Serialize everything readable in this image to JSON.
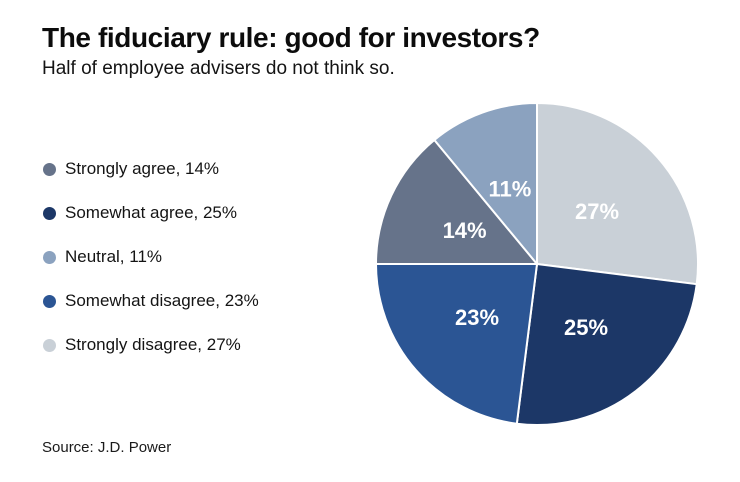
{
  "page": {
    "title": "The fiduciary rule: good for investors?",
    "subtitle": "Half of employee advisers do not think so.",
    "source": "Source: J.D. Power"
  },
  "chart_data": {
    "type": "pie",
    "title": "The fiduciary rule: good for investors?",
    "subtitle": "Half of employee advisers do not think so.",
    "source": "Source: J.D. Power",
    "unit": "%",
    "legend_position": "left",
    "legend_separator": ", ",
    "percent_suffix": "%",
    "data_label_color": "#ffffff",
    "slices": [
      {
        "label": "Strongly agree",
        "value": 14,
        "color": "#66738a"
      },
      {
        "label": "Somewhat agree",
        "value": 25,
        "color": "#1c3767"
      },
      {
        "label": "Neutral",
        "value": 11,
        "color": "#8ba2bf"
      },
      {
        "label": "Somewhat disagree",
        "value": 23,
        "color": "#2b5594"
      },
      {
        "label": "Strongly disagree",
        "value": 27,
        "color": "#c9d0d7"
      }
    ],
    "slice_order_clockwise_from_top": [
      "Strongly disagree",
      "Somewhat agree",
      "Somewhat disagree",
      "Strongly agree",
      "Neutral"
    ]
  }
}
